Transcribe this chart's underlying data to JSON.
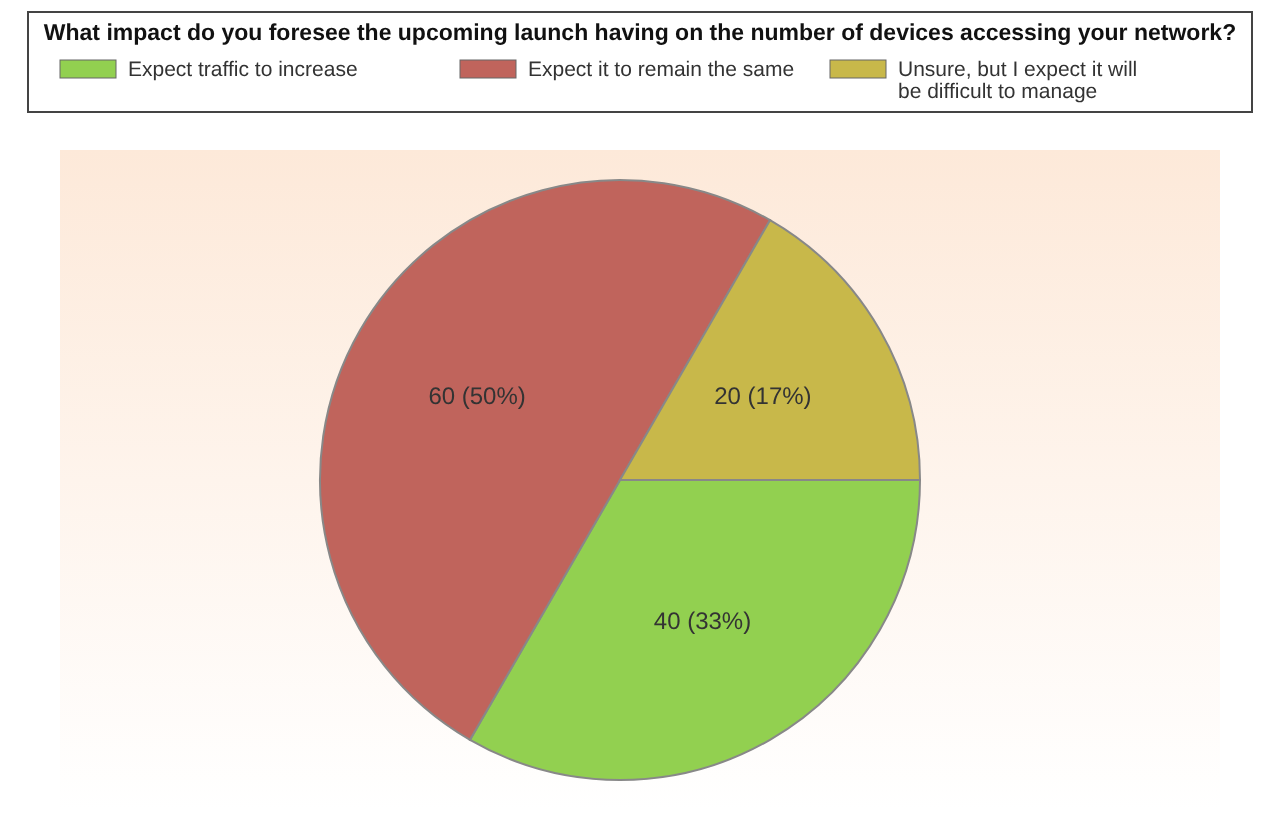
{
  "chart_data": {
    "type": "pie",
    "title": "What impact do you foresee the upcoming launch having on the number of devices accessing your network?",
    "categories": [
      "Expect traffic to increase",
      "Expect it to remain the same",
      "Unsure, but I expect it will be difficult to manage"
    ],
    "values": [
      40,
      60,
      20
    ],
    "colors": [
      "#92d050",
      "#c0645c",
      "#c8b84a"
    ],
    "value_labels": [
      "40 (33%)",
      "60 (50%)",
      "20 (17%)"
    ],
    "legend": "top"
  }
}
